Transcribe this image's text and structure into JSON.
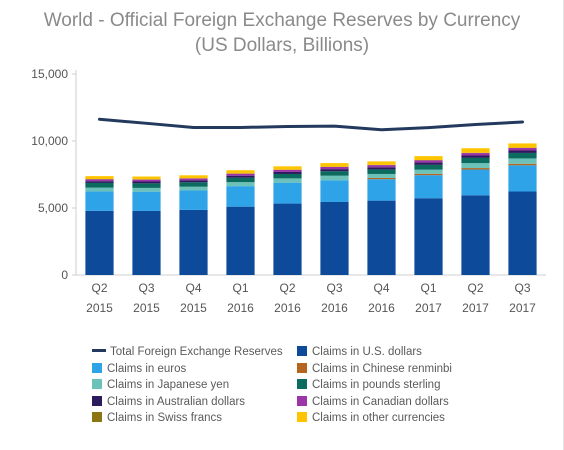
{
  "titles": {
    "line1": "World - Official Foreign Exchange Reserves by Currency",
    "line2": "(US Dollars, Billions)"
  },
  "chart_data": {
    "type": "bar",
    "stacked": true,
    "categories": [
      [
        "Q2",
        "2015"
      ],
      [
        "Q3",
        "2015"
      ],
      [
        "Q4",
        "2015"
      ],
      [
        "Q1",
        "2016"
      ],
      [
        "Q2",
        "2016"
      ],
      [
        "Q3",
        "2016"
      ],
      [
        "Q4",
        "2016"
      ],
      [
        "Q1",
        "2017"
      ],
      [
        "Q2",
        "2017"
      ],
      [
        "Q3",
        "2017"
      ]
    ],
    "ylim": [
      0,
      15000
    ],
    "yticks": [
      0,
      5000,
      10000,
      15000
    ],
    "ytick_labels": [
      "0",
      "5,000",
      "10,000",
      "15,000"
    ],
    "series": [
      {
        "name": "Claims in U.S. dollars",
        "color": "#0d4a9a",
        "values": [
          4790,
          4780,
          4860,
          5100,
          5330,
          5450,
          5550,
          5730,
          5950,
          6230
        ]
      },
      {
        "name": "Claims in euros",
        "color": "#2fa3e8",
        "values": [
          1450,
          1440,
          1450,
          1530,
          1560,
          1620,
          1600,
          1720,
          1920,
          1960
        ]
      },
      {
        "name": "Claims in Chinese renminbi",
        "color": "#b5651d",
        "values": [
          0,
          0,
          0,
          0,
          0,
          0,
          90,
          100,
          110,
          110
        ]
      },
      {
        "name": "Claims in Japanese yen",
        "color": "#6cc1b8",
        "values": [
          280,
          280,
          280,
          300,
          320,
          340,
          300,
          310,
          370,
          400
        ]
      },
      {
        "name": "Claims in pounds sterling",
        "color": "#0b6b5e",
        "values": [
          350,
          340,
          330,
          330,
          330,
          330,
          340,
          360,
          390,
          410
        ]
      },
      {
        "name": "Claims in Australian dollars",
        "color": "#2b1a5c",
        "values": [
          130,
          140,
          140,
          150,
          150,
          160,
          160,
          170,
          180,
          180
        ]
      },
      {
        "name": "Claims in Canadian dollars",
        "color": "#9b35a8",
        "values": [
          140,
          140,
          140,
          150,
          150,
          160,
          160,
          170,
          180,
          190
        ]
      },
      {
        "name": "Claims in Swiss francs",
        "color": "#8c7613",
        "values": [
          20,
          20,
          20,
          20,
          20,
          20,
          20,
          20,
          20,
          20
        ]
      },
      {
        "name": "Claims in other currencies",
        "color": "#ffc400",
        "values": [
          220,
          210,
          220,
          240,
          250,
          270,
          260,
          290,
          340,
          320
        ]
      }
    ],
    "line_series": {
      "name": "Total Foreign Exchange Reserves",
      "color": "#233a5e",
      "values": [
        11620,
        11320,
        11010,
        11010,
        11080,
        11110,
        10840,
        11000,
        11230,
        11420
      ]
    },
    "legend": {
      "placement": "bottom",
      "order": [
        "Total Foreign Exchange Reserves",
        "Claims in U.S. dollars",
        "Claims in euros",
        "Claims in Chinese renminbi",
        "Claims in Japanese yen",
        "Claims in pounds sterling",
        "Claims in Australian dollars",
        "Claims in Canadian dollars",
        "Claims in Swiss francs",
        "Claims in other currencies"
      ]
    },
    "grid": false
  }
}
